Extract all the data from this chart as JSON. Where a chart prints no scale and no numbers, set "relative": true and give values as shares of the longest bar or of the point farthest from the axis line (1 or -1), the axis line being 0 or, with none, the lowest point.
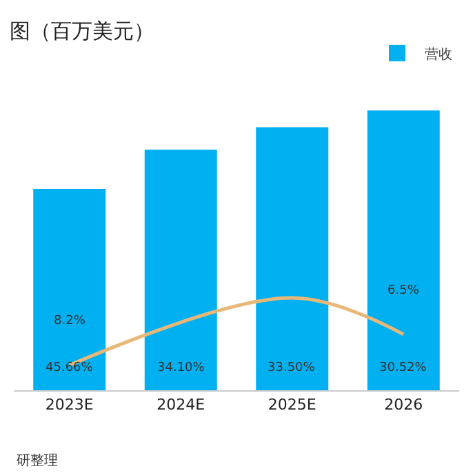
{
  "chart_data": {
    "type": "bar",
    "title": "图（百万美元）",
    "relative": true,
    "legend": "top right",
    "categories": [
      "2023E",
      "2024E",
      "2025E",
      "2026"
    ],
    "series": [
      {
        "name": "营收",
        "color": "#00b0f0",
        "values": [
          0.72,
          0.86,
          0.94,
          1
        ]
      },
      {
        "type": "line",
        "color": "#e8b878",
        "values": [
          0.09,
          null,
          0.33,
          0.2
        ]
      }
    ],
    "annotations": [
      "45.66%",
      "34.10%",
      "33.50%",
      "30.52%",
      "8.2%",
      "6.5%",
      "研整理"
    ]
  }
}
